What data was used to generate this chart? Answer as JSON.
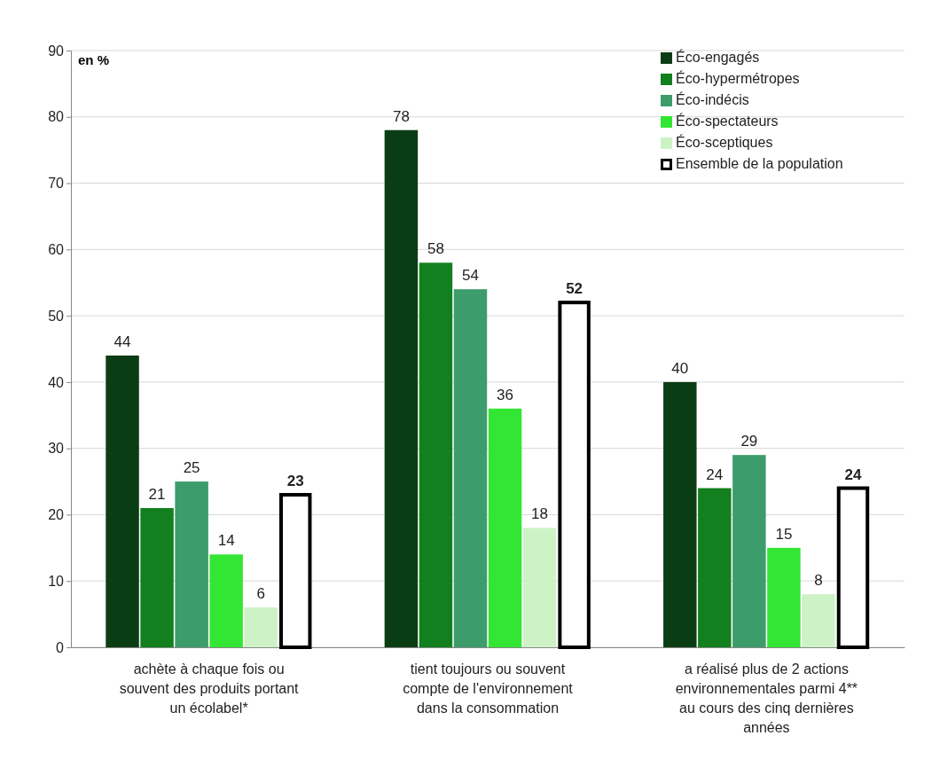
{
  "chart_data": {
    "type": "bar",
    "ylabel": "en %",
    "categories": [
      "achète à chaque fois ou souvent des produits portant un écolabel*",
      "tient toujours ou souvent compte de l'environnement dans la consommation",
      "a réalisé plus de 2 actions environnementales parmi 4** au cours des cinq dernières années"
    ],
    "series": [
      {
        "name": "Éco-engagés",
        "color": "#0b3d14",
        "values": [
          44,
          78,
          40
        ]
      },
      {
        "name": "Éco-hypermétropes",
        "color": "#12801f",
        "values": [
          21,
          58,
          24
        ]
      },
      {
        "name": "Éco-indécis",
        "color": "#3d9c6c",
        "values": [
          25,
          54,
          29
        ]
      },
      {
        "name": "Éco-spectateurs",
        "color": "#33e633",
        "values": [
          14,
          36,
          15
        ]
      },
      {
        "name": "Éco-sceptiques",
        "color": "#cdf2c6",
        "values": [
          6,
          18,
          8
        ]
      },
      {
        "name": "Ensemble de la population",
        "color": "#ffffff",
        "values": [
          23,
          52,
          24
        ]
      }
    ],
    "ylim": [
      0,
      90
    ],
    "yticks": [
      0,
      10,
      20,
      30,
      40,
      50,
      60,
      70,
      80,
      90
    ],
    "grid": "y",
    "legend": "top right",
    "data_labels": true
  }
}
